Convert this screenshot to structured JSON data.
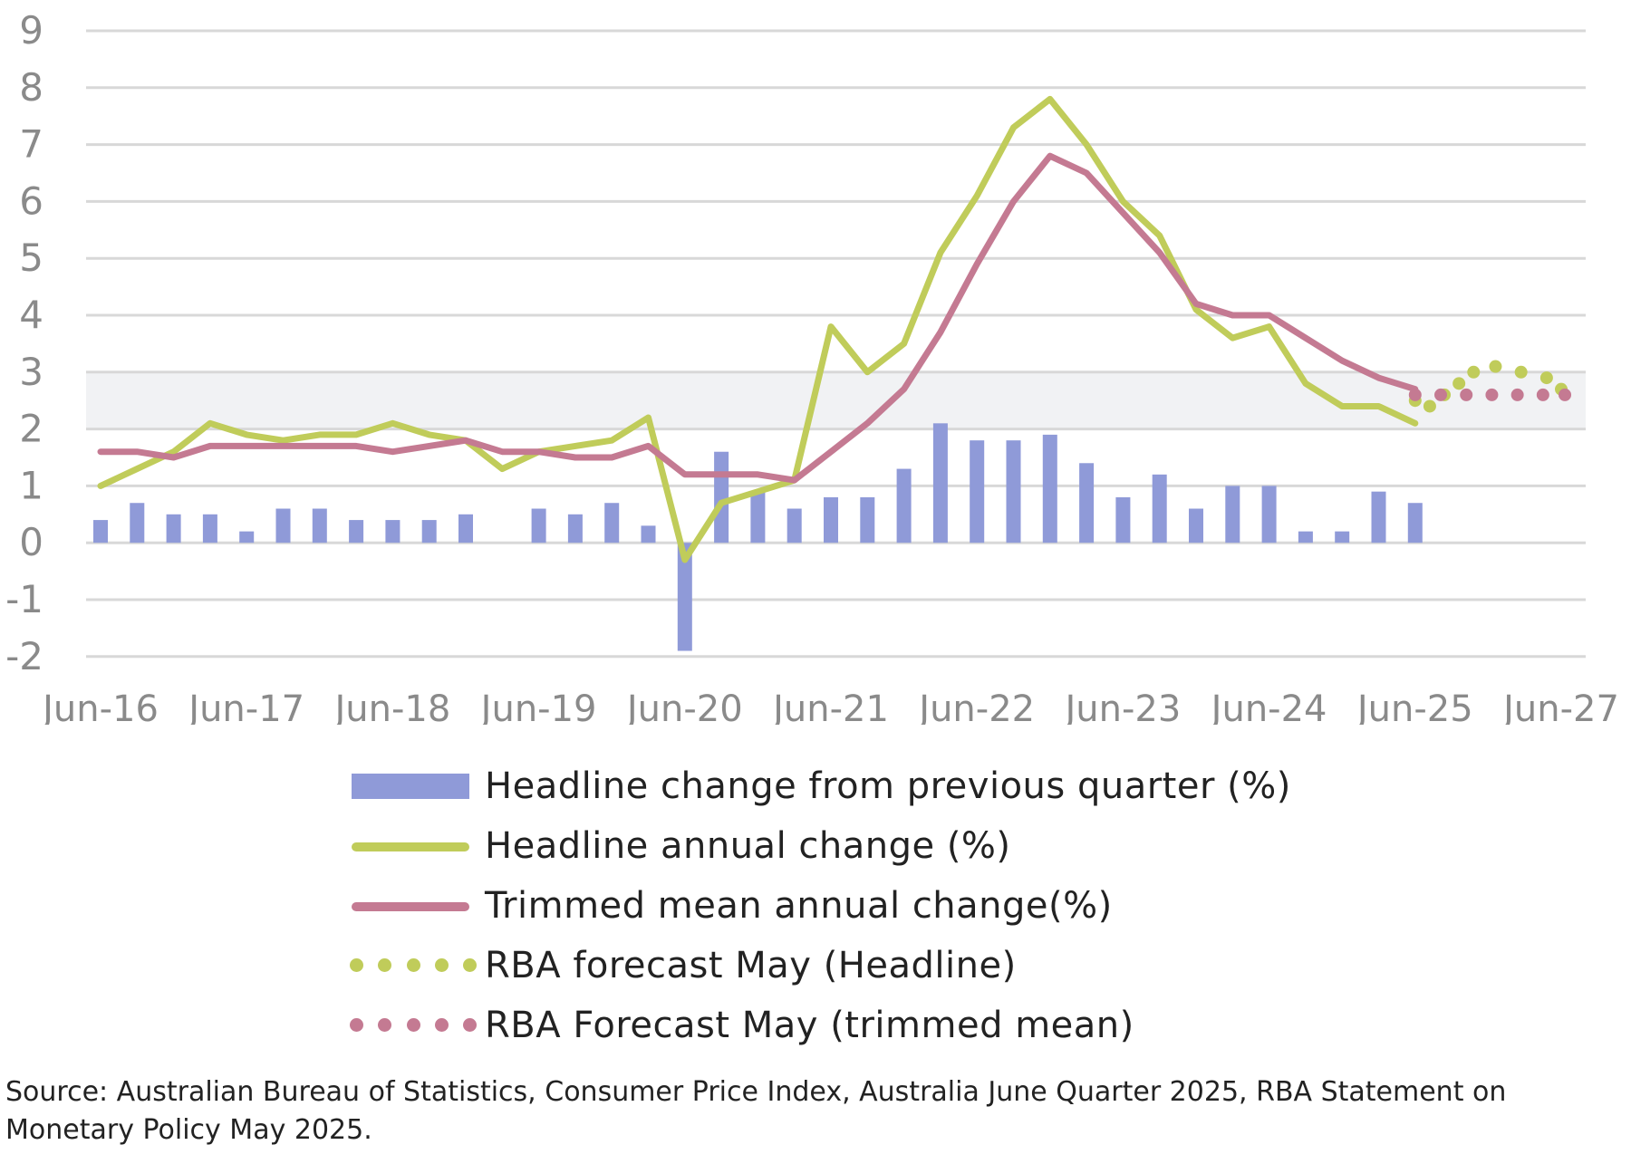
{
  "chart_data": {
    "type": "bar+line",
    "y_ticks": [
      "9",
      "8",
      "7",
      "6",
      "5",
      "4",
      "3",
      "2",
      "1",
      "0",
      "-1",
      "-2"
    ],
    "ylim": [
      -2,
      9
    ],
    "x_ticks": [
      "Jun-16",
      "Jun-17",
      "Jun-18",
      "Jun-19",
      "Jun-20",
      "Jun-21",
      "Jun-22",
      "Jun-23",
      "Jun-24",
      "Jun-25",
      "Jun-27"
    ],
    "x_tick_quarters": [
      0,
      4,
      8,
      12,
      16,
      20,
      24,
      28,
      32,
      36,
      40
    ],
    "target_band": [
      2,
      3
    ],
    "series": [
      {
        "name": "Headline change from previous quarter (%)",
        "type": "bar",
        "color": "#8f9ad8",
        "points": [
          [
            0,
            0.4
          ],
          [
            1,
            0.7
          ],
          [
            2,
            0.5
          ],
          [
            3,
            0.5
          ],
          [
            4,
            0.2
          ],
          [
            5,
            0.6
          ],
          [
            6,
            0.6
          ],
          [
            7,
            0.4
          ],
          [
            8,
            0.4
          ],
          [
            9,
            0.4
          ],
          [
            10,
            0.5
          ],
          [
            12,
            0.6
          ],
          [
            13,
            0.5
          ],
          [
            14,
            0.7
          ],
          [
            15,
            0.3
          ],
          [
            16,
            -1.9
          ],
          [
            17,
            1.6
          ],
          [
            18,
            0.9
          ],
          [
            19,
            0.6
          ],
          [
            20,
            0.8
          ],
          [
            21,
            0.8
          ],
          [
            22,
            1.3
          ],
          [
            23,
            2.1
          ],
          [
            24,
            1.8
          ],
          [
            25,
            1.8
          ],
          [
            26,
            1.9
          ],
          [
            27,
            1.4
          ],
          [
            28,
            0.8
          ],
          [
            29,
            1.2
          ],
          [
            30,
            0.6
          ],
          [
            31,
            1.0
          ],
          [
            32,
            1.0
          ],
          [
            33,
            0.2
          ],
          [
            34,
            0.2
          ],
          [
            35,
            0.9
          ],
          [
            36,
            0.7
          ]
        ]
      },
      {
        "name": "Headline annual change (%)",
        "type": "line",
        "color": "#c0cc5a",
        "points": [
          [
            0,
            1.0
          ],
          [
            1,
            1.3
          ],
          [
            2,
            1.6
          ],
          [
            3,
            2.1
          ],
          [
            4,
            1.9
          ],
          [
            5,
            1.8
          ],
          [
            6,
            1.9
          ],
          [
            7,
            1.9
          ],
          [
            8,
            2.1
          ],
          [
            9,
            1.9
          ],
          [
            10,
            1.8
          ],
          [
            11,
            1.3
          ],
          [
            12,
            1.6
          ],
          [
            13,
            1.7
          ],
          [
            14,
            1.8
          ],
          [
            15,
            2.2
          ],
          [
            16,
            -0.3
          ],
          [
            17,
            0.7
          ],
          [
            18,
            0.9
          ],
          [
            19,
            1.1
          ],
          [
            20,
            3.8
          ],
          [
            21,
            3.0
          ],
          [
            22,
            3.5
          ],
          [
            23,
            5.1
          ],
          [
            24,
            6.1
          ],
          [
            25,
            7.3
          ],
          [
            26,
            7.8
          ],
          [
            27,
            7.0
          ],
          [
            28,
            6.0
          ],
          [
            29,
            5.4
          ],
          [
            30,
            4.1
          ],
          [
            31,
            3.6
          ],
          [
            32,
            3.8
          ],
          [
            33,
            2.8
          ],
          [
            34,
            2.4
          ],
          [
            35,
            2.4
          ],
          [
            36,
            2.1
          ]
        ]
      },
      {
        "name": "Trimmed mean annual change(%)",
        "type": "line",
        "color": "#c47a92",
        "points": [
          [
            0,
            1.6
          ],
          [
            1,
            1.6
          ],
          [
            2,
            1.5
          ],
          [
            3,
            1.7
          ],
          [
            4,
            1.7
          ],
          [
            5,
            1.7
          ],
          [
            6,
            1.7
          ],
          [
            7,
            1.7
          ],
          [
            8,
            1.6
          ],
          [
            9,
            1.7
          ],
          [
            10,
            1.8
          ],
          [
            11,
            1.6
          ],
          [
            12,
            1.6
          ],
          [
            13,
            1.5
          ],
          [
            14,
            1.5
          ],
          [
            15,
            1.7
          ],
          [
            16,
            1.2
          ],
          [
            17,
            1.2
          ],
          [
            18,
            1.2
          ],
          [
            19,
            1.1
          ],
          [
            20,
            1.6
          ],
          [
            21,
            2.1
          ],
          [
            22,
            2.7
          ],
          [
            23,
            3.7
          ],
          [
            24,
            4.9
          ],
          [
            25,
            6.0
          ],
          [
            26,
            6.8
          ],
          [
            27,
            6.5
          ],
          [
            28,
            5.8
          ],
          [
            29,
            5.1
          ],
          [
            30,
            4.2
          ],
          [
            31,
            4.0
          ],
          [
            32,
            4.0
          ],
          [
            33,
            3.6
          ],
          [
            34,
            3.2
          ],
          [
            35,
            2.9
          ],
          [
            36,
            2.7
          ]
        ]
      },
      {
        "name": "RBA forecast May (Headline)",
        "type": "dotted",
        "color": "#c0cc5a",
        "points": [
          [
            36,
            2.5
          ],
          [
            36.4,
            2.4
          ],
          [
            36.8,
            2.6
          ],
          [
            37.2,
            2.8
          ],
          [
            37.6,
            3.0
          ],
          [
            38.2,
            3.1
          ],
          [
            38.9,
            3.0
          ],
          [
            39.6,
            2.9
          ],
          [
            40,
            2.7
          ]
        ]
      },
      {
        "name": "RBA Forecast May (trimmed mean)",
        "type": "dotted",
        "color": "#c47a92",
        "points": [
          [
            36,
            2.6
          ],
          [
            36.7,
            2.6
          ],
          [
            37.4,
            2.6
          ],
          [
            38.1,
            2.6
          ],
          [
            38.8,
            2.6
          ],
          [
            39.5,
            2.6
          ],
          [
            40.1,
            2.6
          ]
        ]
      }
    ]
  },
  "legend": {
    "items": [
      {
        "label": "Headline change from previous quarter (%)",
        "color": "#8f9ad8"
      },
      {
        "label": "Headline annual change (%)",
        "color": "#c0cc5a"
      },
      {
        "label": "Trimmed mean annual change(%)",
        "color": "#c47a92"
      },
      {
        "label": "RBA forecast May (Headline)",
        "color": "#c0cc5a"
      },
      {
        "label": "RBA Forecast May (trimmed mean)",
        "color": "#c47a92"
      }
    ]
  },
  "source_note": "Source: Australian Bureau of Statistics, Consumer Price Index, Australia June Quarter 2025, RBA Statement on Monetary Policy May 2025."
}
